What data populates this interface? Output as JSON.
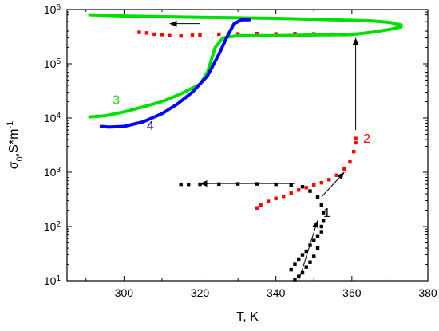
{
  "chart_data": {
    "type": "scatter",
    "title": "",
    "xlabel": "T, K",
    "ylabel": "σ₀,S*m⁻¹",
    "ylabel_parts": {
      "sigma": "σ",
      "sub": "0",
      "unit": ",S*m",
      "sup": "-1"
    },
    "xlim": [
      285,
      380
    ],
    "ylim": [
      10,
      1000000
    ],
    "yscale": "log",
    "grid": false,
    "x_ticks": [
      300,
      320,
      340,
      360,
      380
    ],
    "x_tick_labels": [
      "300",
      "320",
      "340",
      "360",
      "380"
    ],
    "y_ticks": [
      10,
      100,
      1000,
      10000,
      100000,
      1000000
    ],
    "y_tick_labels": [
      {
        "base": "10",
        "exp": "1"
      },
      {
        "base": "10",
        "exp": "2"
      },
      {
        "base": "10",
        "exp": "3"
      },
      {
        "base": "10",
        "exp": "4"
      },
      {
        "base": "10",
        "exp": "5"
      },
      {
        "base": "10",
        "exp": "6"
      }
    ],
    "series": [
      {
        "name": "1",
        "color": "#000000",
        "style": "markers",
        "label_at": [
          352.5,
          150
        ],
        "points": [
          [
            345,
            10.5
          ],
          [
            346,
            12
          ],
          [
            344,
            16
          ],
          [
            347,
            14
          ],
          [
            345,
            20
          ],
          [
            348,
            18
          ],
          [
            346,
            25
          ],
          [
            349,
            22
          ],
          [
            347,
            30
          ],
          [
            350,
            28
          ],
          [
            348,
            35
          ],
          [
            349,
            45
          ],
          [
            351,
            40
          ],
          [
            350,
            55
          ],
          [
            351,
            65
          ],
          [
            352,
            80
          ],
          [
            352,
            100
          ],
          [
            352.5,
            130
          ],
          [
            352.5,
            180
          ],
          [
            352,
            250
          ],
          [
            351,
            350
          ],
          [
            349,
            450
          ],
          [
            347,
            540
          ],
          [
            344,
            580
          ],
          [
            340,
            600
          ],
          [
            335,
            610
          ],
          [
            330,
            610
          ],
          [
            325,
            605
          ],
          [
            320,
            600
          ],
          [
            317,
            598
          ],
          [
            315,
            600
          ]
        ]
      },
      {
        "name": "2",
        "color": "#ff0000",
        "style": "markers",
        "label_at": [
          363,
          3500
        ],
        "points": [
          [
            335,
            220
          ],
          [
            336,
            250
          ],
          [
            338,
            290
          ],
          [
            340,
            330
          ],
          [
            342,
            360
          ],
          [
            344,
            410
          ],
          [
            346,
            470
          ],
          [
            348,
            520
          ],
          [
            350,
            580
          ],
          [
            352,
            640
          ],
          [
            354,
            730
          ],
          [
            356,
            880
          ],
          [
            358,
            1150
          ],
          [
            359.5,
            1600
          ],
          [
            360.5,
            2400
          ],
          [
            361,
            3500
          ],
          [
            361,
            4200
          ]
        ]
      },
      {
        "name": "2",
        "color": "#ff0000",
        "style": "markers",
        "label_at": null,
        "points": [
          [
            304,
            380000
          ],
          [
            306,
            370000
          ],
          [
            308,
            350000
          ],
          [
            310,
            345000
          ],
          [
            312,
            330000
          ],
          [
            315,
            325000
          ],
          [
            318,
            335000
          ],
          [
            320,
            340000
          ],
          [
            325,
            350000
          ],
          [
            330,
            355000
          ],
          [
            335,
            360000
          ],
          [
            340,
            355000
          ],
          [
            345,
            360000
          ],
          [
            350,
            355000
          ],
          [
            355,
            350000
          ],
          [
            358,
            345000
          ]
        ]
      },
      {
        "name": "3",
        "color": "#00e000",
        "style": "line",
        "label_at": [
          297,
          18000
        ],
        "points": [
          [
            291,
            10500
          ],
          [
            295,
            11000
          ],
          [
            300,
            13000
          ],
          [
            305,
            16000
          ],
          [
            310,
            20000
          ],
          [
            315,
            28000
          ],
          [
            320,
            42000
          ],
          [
            322,
            70000
          ],
          [
            324,
            200000
          ],
          [
            326,
            300000
          ],
          [
            330,
            330000
          ],
          [
            340,
            330000
          ],
          [
            350,
            340000
          ],
          [
            360,
            345000
          ],
          [
            365,
            380000
          ],
          [
            370,
            430000
          ],
          [
            373,
            480000
          ],
          [
            373,
            520000
          ],
          [
            370,
            580000
          ],
          [
            365,
            620000
          ],
          [
            355,
            650000
          ],
          [
            340,
            690000
          ],
          [
            320,
            720000
          ],
          [
            300,
            760000
          ],
          [
            291,
            800000
          ]
        ]
      },
      {
        "name": "4",
        "color": "#0000ff",
        "style": "line",
        "label_at": [
          306,
          6000
        ],
        "points": [
          [
            294,
            7000
          ],
          [
            296,
            6800
          ],
          [
            300,
            7000
          ],
          [
            305,
            8500
          ],
          [
            310,
            12000
          ],
          [
            314,
            18000
          ],
          [
            318,
            30000
          ],
          [
            322,
            60000
          ],
          [
            325,
            150000
          ],
          [
            327,
            300000
          ],
          [
            329,
            550000
          ],
          [
            331,
            650000
          ],
          [
            333,
            650000
          ]
        ]
      }
    ],
    "annotations": [
      {
        "type": "arrow",
        "from": [
          320,
          550000
        ],
        "to": [
          312,
          550000
        ]
      },
      {
        "type": "arrow",
        "from": [
          345,
          620
        ],
        "to": [
          320,
          620
        ]
      },
      {
        "type": "arrow",
        "from": [
          346,
          10
        ],
        "to": [
          351,
          130
        ]
      },
      {
        "type": "arrow",
        "from": [
          352,
          350
        ],
        "to": [
          358,
          1000
        ]
      },
      {
        "type": "arrow",
        "from": [
          361,
          6000
        ],
        "to": [
          361,
          300000
        ]
      }
    ]
  }
}
